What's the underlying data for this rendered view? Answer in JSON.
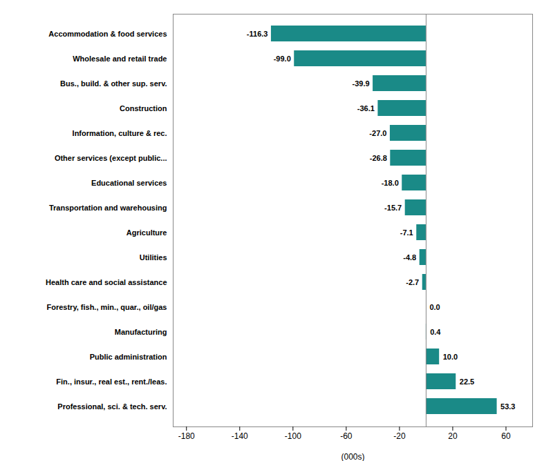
{
  "chart_data": {
    "type": "bar",
    "orientation": "horizontal",
    "categories": [
      "Professional, sci. & tech. serv.",
      "Fin., insur., real est., rent./leas.",
      "Public administration",
      "Manufacturing",
      "Forestry, fish., min., quar., oil/gas",
      "Health care and social assistance",
      "Utilities",
      "Agriculture",
      "Transportation and warehousing",
      "Educational services",
      "Other services (except public...",
      "Information, culture & rec.",
      "Construction",
      "Bus., build. & other sup. serv.",
      "Wholesale and retail trade",
      "Accommodation & food services"
    ],
    "values": [
      53.3,
      22.5,
      10.0,
      0.4,
      0.0,
      -2.7,
      -4.8,
      -7.1,
      -15.7,
      -18.0,
      -26.8,
      -27.0,
      -36.1,
      -39.9,
      -99.0,
      -116.3
    ],
    "value_labels": [
      "53.3",
      "22.5",
      "10.0",
      "0.4",
      "0.0",
      "-2.7",
      "-4.8",
      "-7.1",
      "-15.7",
      "-18.0",
      "-26.8",
      "-27.0",
      "-36.1",
      "-39.9",
      "-99.0",
      "-116.3"
    ],
    "data_labels": true,
    "color": "#1a8a87",
    "xlabel": "(000s)",
    "xlim": [
      -190,
      80
    ],
    "xticks": [
      -180,
      -140,
      -100,
      -60,
      -20,
      20,
      60
    ],
    "grid": false
  }
}
